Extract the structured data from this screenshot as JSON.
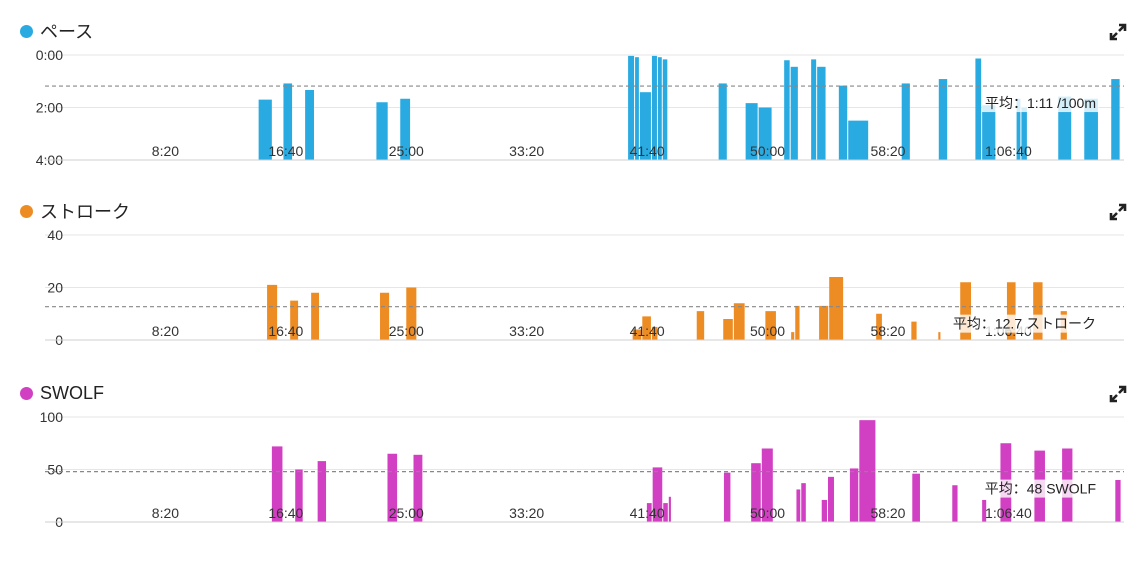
{
  "chart_data": [
    {
      "type": "bar",
      "title": "ペース",
      "color": "#29abe2",
      "y_inverted": true,
      "ylim": [
        0,
        240
      ],
      "yticks": [
        {
          "v": 0,
          "label": "0:00"
        },
        {
          "v": 120,
          "label": "2:00"
        },
        {
          "v": 240,
          "label": "4:00"
        }
      ],
      "xlim": [
        0,
        4480
      ],
      "xticks": [
        {
          "v": 500,
          "label": "8:20"
        },
        {
          "v": 1000,
          "label": "16:40"
        },
        {
          "v": 1500,
          "label": "25:00"
        },
        {
          "v": 2000,
          "label": "33:20"
        },
        {
          "v": 2500,
          "label": "41:40"
        },
        {
          "v": 3000,
          "label": "50:00"
        },
        {
          "v": 3500,
          "label": "58:20"
        },
        {
          "v": 4000,
          "label": "1:06:40"
        }
      ],
      "avg": {
        "value": 71,
        "label": "平均：1:11 /100m"
      },
      "bars": [
        {
          "x0": 887,
          "x1": 946,
          "v": 102
        },
        {
          "x0": 990,
          "x1": 1030,
          "v": 65
        },
        {
          "x0": 1080,
          "x1": 1121,
          "v": 80
        },
        {
          "x0": 1376,
          "x1": 1427,
          "v": 108
        },
        {
          "x0": 1475,
          "x1": 1520,
          "v": 100
        },
        {
          "x0": 2421,
          "x1": 2450,
          "v": 2
        },
        {
          "x0": 2450,
          "x1": 2470,
          "v": 5
        },
        {
          "x0": 2470,
          "x1": 2520,
          "v": 85
        },
        {
          "x0": 2520,
          "x1": 2545,
          "v": 2
        },
        {
          "x0": 2545,
          "x1": 2565,
          "v": 5
        },
        {
          "x0": 2565,
          "x1": 2588,
          "v": 10
        },
        {
          "x0": 2797,
          "x1": 2835,
          "v": 65
        },
        {
          "x0": 2909,
          "x1": 2963,
          "v": 110
        },
        {
          "x0": 2963,
          "x1": 3021,
          "v": 120
        },
        {
          "x0": 3069,
          "x1": 3096,
          "v": 12
        },
        {
          "x0": 3096,
          "x1": 3130,
          "v": 27
        },
        {
          "x0": 3181,
          "x1": 3206,
          "v": 10
        },
        {
          "x0": 3206,
          "x1": 3245,
          "v": 27
        },
        {
          "x0": 3296,
          "x1": 3335,
          "v": 70
        },
        {
          "x0": 3335,
          "x1": 3422,
          "v": 150
        },
        {
          "x0": 3557,
          "x1": 3595,
          "v": 65
        },
        {
          "x0": 3711,
          "x1": 3750,
          "v": 55
        },
        {
          "x0": 3863,
          "x1": 3891,
          "v": 8
        },
        {
          "x0": 3891,
          "x1": 3950,
          "v": 115
        },
        {
          "x0": 4034,
          "x1": 4054,
          "v": 100
        },
        {
          "x0": 4054,
          "x1": 4081,
          "v": 120
        },
        {
          "x0": 4207,
          "x1": 4265,
          "v": 95
        },
        {
          "x0": 4315,
          "x1": 4376,
          "v": 100
        },
        {
          "x0": 4427,
          "x1": 4466,
          "v": 55
        }
      ]
    },
    {
      "type": "bar",
      "title": "ストローク",
      "color": "#ee8c24",
      "y_inverted": false,
      "ylim": [
        0,
        40
      ],
      "yticks": [
        {
          "v": 40,
          "label": "40"
        },
        {
          "v": 20,
          "label": "20"
        },
        {
          "v": 0,
          "label": "0"
        }
      ],
      "xlim": [
        0,
        4480
      ],
      "xticks": [
        {
          "v": 500,
          "label": "8:20"
        },
        {
          "v": 1000,
          "label": "16:40"
        },
        {
          "v": 1500,
          "label": "25:00"
        },
        {
          "v": 2000,
          "label": "33:20"
        },
        {
          "v": 2500,
          "label": "41:40"
        },
        {
          "v": 3000,
          "label": "50:00"
        },
        {
          "v": 3500,
          "label": "58:20"
        },
        {
          "v": 4000,
          "label": "1:06:40"
        }
      ],
      "avg": {
        "value": 12.7,
        "label": "平均：12.7 ストローク"
      },
      "bars": [
        {
          "x0": 922,
          "x1": 968,
          "v": 21
        },
        {
          "x0": 1018,
          "x1": 1055,
          "v": 15
        },
        {
          "x0": 1105,
          "x1": 1142,
          "v": 18
        },
        {
          "x0": 1391,
          "x1": 1433,
          "v": 18
        },
        {
          "x0": 1500,
          "x1": 1546,
          "v": 20
        },
        {
          "x0": 2440,
          "x1": 2480,
          "v": 4
        },
        {
          "x0": 2480,
          "x1": 2520,
          "v": 9
        },
        {
          "x0": 2520,
          "x1": 2547,
          "v": 5
        },
        {
          "x0": 2706,
          "x1": 2741,
          "v": 11
        },
        {
          "x0": 2816,
          "x1": 2860,
          "v": 8
        },
        {
          "x0": 2860,
          "x1": 2909,
          "v": 14
        },
        {
          "x0": 2991,
          "x1": 3039,
          "v": 11
        },
        {
          "x0": 3098,
          "x1": 3115,
          "v": 3
        },
        {
          "x0": 3115,
          "x1": 3137,
          "v": 13
        },
        {
          "x0": 3214,
          "x1": 3256,
          "v": 13
        },
        {
          "x0": 3256,
          "x1": 3318,
          "v": 24
        },
        {
          "x0": 3451,
          "x1": 3479,
          "v": 10
        },
        {
          "x0": 3597,
          "x1": 3623,
          "v": 7
        },
        {
          "x0": 3709,
          "x1": 3722,
          "v": 3
        },
        {
          "x0": 3800,
          "x1": 3849,
          "v": 22
        },
        {
          "x0": 3994,
          "x1": 4034,
          "v": 22
        },
        {
          "x0": 4103,
          "x1": 4146,
          "v": 22
        },
        {
          "x0": 4217,
          "x1": 4247,
          "v": 11
        }
      ]
    },
    {
      "type": "bar",
      "title": "SWOLF",
      "color": "#d13fc2",
      "y_inverted": false,
      "ylim": [
        0,
        100
      ],
      "yticks": [
        {
          "v": 100,
          "label": "100"
        },
        {
          "v": 50,
          "label": "50"
        },
        {
          "v": 0,
          "label": "0"
        }
      ],
      "xlim": [
        0,
        4480
      ],
      "xticks": [
        {
          "v": 500,
          "label": "8:20"
        },
        {
          "v": 1000,
          "label": "16:40"
        },
        {
          "v": 1500,
          "label": "25:00"
        },
        {
          "v": 2000,
          "label": "33:20"
        },
        {
          "v": 2500,
          "label": "41:40"
        },
        {
          "v": 3000,
          "label": "50:00"
        },
        {
          "v": 3500,
          "label": "58:20"
        },
        {
          "v": 4000,
          "label": "1:06:40"
        }
      ],
      "avg": {
        "value": 48,
        "label": "平均：48 SWOLF"
      },
      "bars": [
        {
          "x0": 942,
          "x1": 990,
          "v": 72
        },
        {
          "x0": 1039,
          "x1": 1074,
          "v": 50
        },
        {
          "x0": 1132,
          "x1": 1171,
          "v": 58
        },
        {
          "x0": 1422,
          "x1": 1466,
          "v": 65
        },
        {
          "x0": 1530,
          "x1": 1571,
          "v": 64
        },
        {
          "x0": 2499,
          "x1": 2523,
          "v": 18
        },
        {
          "x0": 2523,
          "x1": 2567,
          "v": 52
        },
        {
          "x0": 2567,
          "x1": 2590,
          "v": 18
        },
        {
          "x0": 2590,
          "x1": 2603,
          "v": 24
        },
        {
          "x0": 2819,
          "x1": 2850,
          "v": 47
        },
        {
          "x0": 2932,
          "x1": 2976,
          "v": 56
        },
        {
          "x0": 2976,
          "x1": 3026,
          "v": 70
        },
        {
          "x0": 3120,
          "x1": 3140,
          "v": 31
        },
        {
          "x0": 3140,
          "x1": 3163,
          "v": 37
        },
        {
          "x0": 3225,
          "x1": 3251,
          "v": 21
        },
        {
          "x0": 3251,
          "x1": 3280,
          "v": 43
        },
        {
          "x0": 3342,
          "x1": 3381,
          "v": 51
        },
        {
          "x0": 3381,
          "x1": 3452,
          "v": 97
        },
        {
          "x0": 3601,
          "x1": 3637,
          "v": 46
        },
        {
          "x0": 3767,
          "x1": 3793,
          "v": 35
        },
        {
          "x0": 3891,
          "x1": 3912,
          "v": 21
        },
        {
          "x0": 3967,
          "x1": 4016,
          "v": 75
        },
        {
          "x0": 4108,
          "x1": 4156,
          "v": 68
        },
        {
          "x0": 4223,
          "x1": 4270,
          "v": 70
        },
        {
          "x0": 4444,
          "x1": 4470,
          "v": 40
        }
      ]
    }
  ]
}
